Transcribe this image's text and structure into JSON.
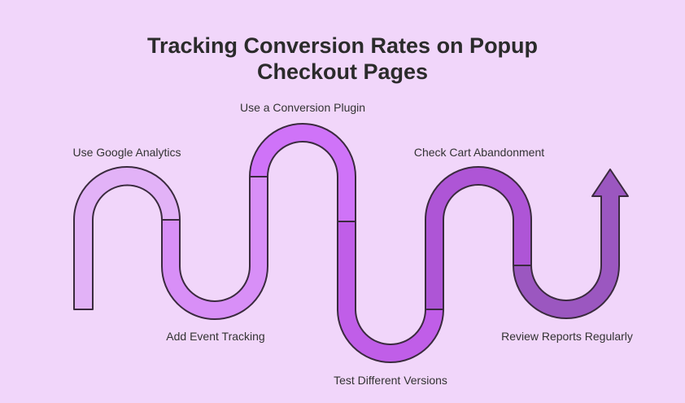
{
  "title": {
    "line1": "Tracking Conversion Rates on Popup",
    "line2": "Checkout Pages"
  },
  "steps": [
    {
      "label": "Use Google Analytics",
      "color": "#e2b2f7"
    },
    {
      "label": "Add Event Tracking",
      "color": "#d88ff7"
    },
    {
      "label": "Use a Conversion Plugin",
      "color": "#cf73f8"
    },
    {
      "label": "Test Different Versions",
      "color": "#c05ee8"
    },
    {
      "label": "Check Cart Abandonment",
      "color": "#ae55d6"
    },
    {
      "label": "Review Reports Regularly",
      "color": "#9b57c0"
    }
  ],
  "stroke_color": "#3a2a3e"
}
